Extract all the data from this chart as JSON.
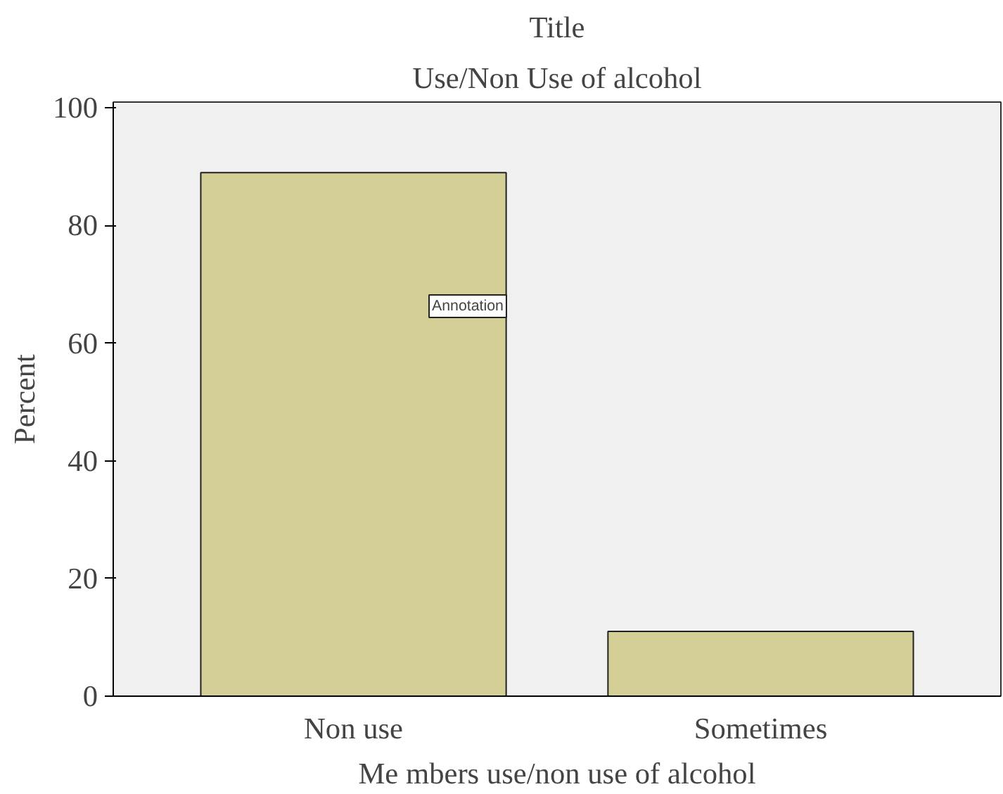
{
  "chart_data": {
    "type": "bar",
    "title": "Title",
    "subtitle": "Use/Non Use of alcohol",
    "xlabel": "Me mbers use/non use of alcohol",
    "ylabel": "Percent",
    "categories": [
      "Non use",
      "Sometimes"
    ],
    "values": [
      89,
      11
    ],
    "color": "#d4cf96",
    "ylim": [
      0,
      101
    ],
    "yticks": [
      0,
      20,
      40,
      60,
      80,
      100
    ],
    "grid": false,
    "annotations": [
      "Annotation"
    ]
  }
}
